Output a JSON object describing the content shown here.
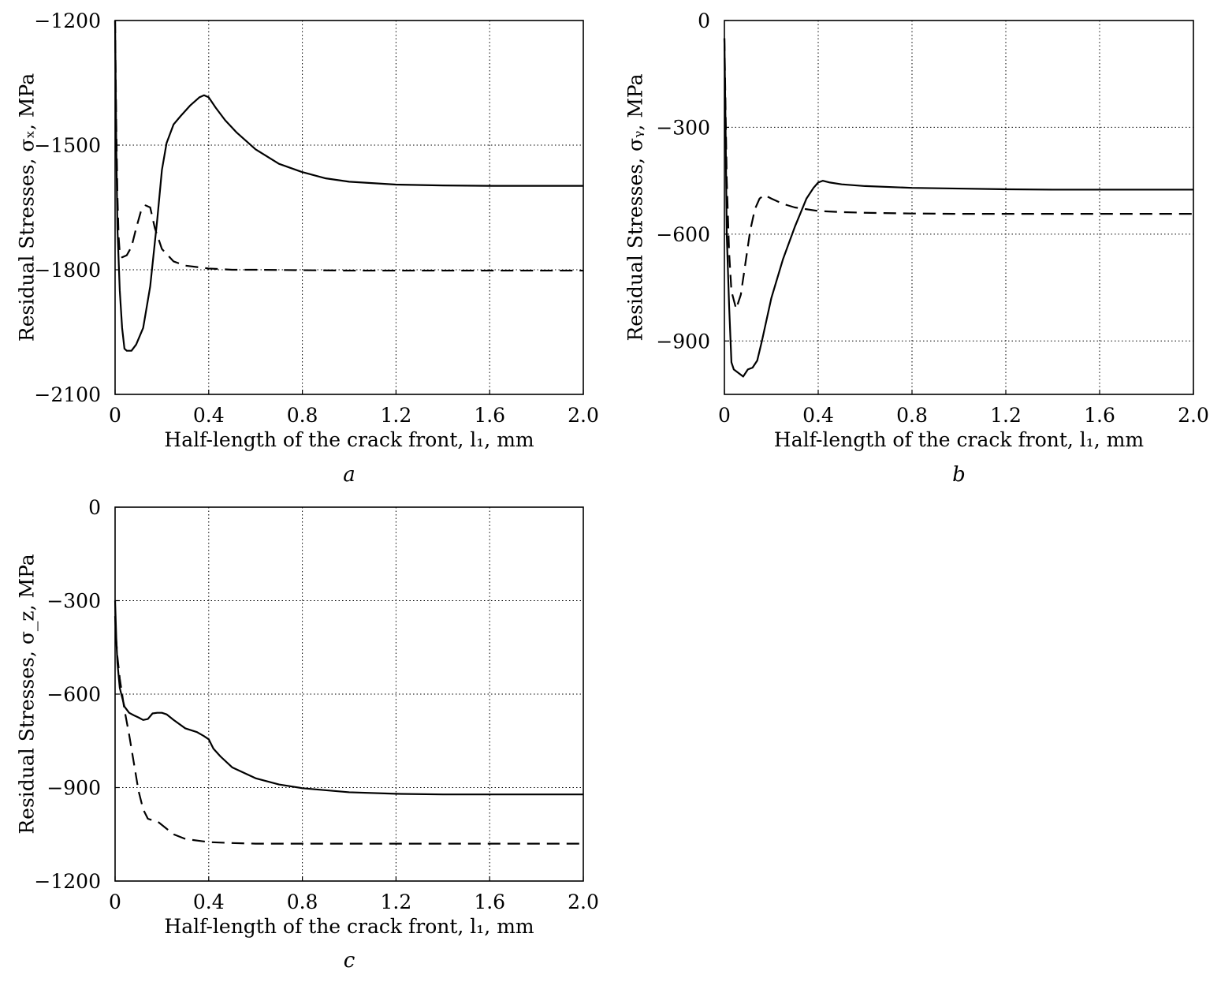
{
  "chart_data": [
    {
      "type": "line",
      "panel_label": "a",
      "xlabel": "Half-length of the crack front, l₁, mm",
      "ylabel": "Residual Stresses, σₓ, MPa",
      "xlim": [
        0,
        2.0
      ],
      "ylim": [
        -2100,
        -1200
      ],
      "x_ticks": [
        0,
        0.4,
        0.8,
        1.2,
        1.6,
        2.0
      ],
      "x_tick_labels": [
        "0",
        "0.4",
        "0.8",
        "1.2",
        "1.6",
        "2.0"
      ],
      "y_ticks": [
        -1200,
        -1500,
        -1800,
        -2100
      ],
      "y_tick_labels": [
        "−1200",
        "−1500",
        "−1800",
        "−2100"
      ],
      "grid": true,
      "series": [
        {
          "style": "solid",
          "x": [
            0,
            0.005,
            0.01,
            0.02,
            0.03,
            0.04,
            0.05,
            0.07,
            0.09,
            0.12,
            0.15,
            0.18,
            0.2,
            0.22,
            0.25,
            0.28,
            0.32,
            0.36,
            0.38,
            0.4,
            0.43,
            0.47,
            0.52,
            0.6,
            0.7,
            0.8,
            0.9,
            1.0,
            1.2,
            1.4,
            1.6,
            1.8,
            2.0
          ],
          "y": [
            -1200,
            -1500,
            -1700,
            -1850,
            -1940,
            -1990,
            -1995,
            -1995,
            -1980,
            -1940,
            -1840,
            -1680,
            -1560,
            -1495,
            -1450,
            -1430,
            -1405,
            -1385,
            -1380,
            -1385,
            -1410,
            -1440,
            -1470,
            -1510,
            -1545,
            -1565,
            -1580,
            -1588,
            -1595,
            -1597,
            -1598,
            -1598,
            -1598
          ]
        },
        {
          "style": "dashed",
          "x": [
            0,
            0.005,
            0.01,
            0.015,
            0.02,
            0.03,
            0.05,
            0.07,
            0.09,
            0.11,
            0.13,
            0.15,
            0.17,
            0.2,
            0.25,
            0.3,
            0.4,
            0.5,
            0.6,
            0.8,
            1.0,
            1.2,
            1.4,
            1.6,
            1.8,
            2.0
          ],
          "y": [
            -1200,
            -1450,
            -1620,
            -1720,
            -1760,
            -1770,
            -1765,
            -1745,
            -1700,
            -1660,
            -1645,
            -1650,
            -1700,
            -1750,
            -1780,
            -1790,
            -1797,
            -1800,
            -1800,
            -1801,
            -1802,
            -1802,
            -1802,
            -1802,
            -1802,
            -1802
          ]
        }
      ]
    },
    {
      "type": "line",
      "panel_label": "b",
      "xlabel": "Half-length of the crack front, l₁, mm",
      "ylabel": "Residual Stresses, σᵧ, MPa",
      "xlim": [
        0,
        2.0
      ],
      "ylim": [
        -1050,
        0
      ],
      "x_ticks": [
        0,
        0.4,
        0.8,
        1.2,
        1.6,
        2.0
      ],
      "x_tick_labels": [
        "0",
        "0.4",
        "0.8",
        "1.2",
        "1.6",
        "2.0"
      ],
      "y_ticks": [
        0,
        -300,
        -600,
        -900
      ],
      "y_tick_labels": [
        "0",
        "−300",
        "−600",
        "−900"
      ],
      "grid": true,
      "series": [
        {
          "style": "solid",
          "x": [
            0,
            0.005,
            0.01,
            0.02,
            0.03,
            0.04,
            0.06,
            0.08,
            0.1,
            0.12,
            0.14,
            0.16,
            0.2,
            0.25,
            0.3,
            0.35,
            0.38,
            0.4,
            0.42,
            0.45,
            0.5,
            0.6,
            0.8,
            1.0,
            1.2,
            1.4,
            1.6,
            1.8,
            2.0
          ],
          "y": [
            -50,
            -300,
            -600,
            -800,
            -960,
            -980,
            -990,
            -1000,
            -980,
            -975,
            -955,
            -900,
            -780,
            -670,
            -580,
            -500,
            -470,
            -455,
            -450,
            -455,
            -460,
            -465,
            -470,
            -472,
            -474,
            -475,
            -475,
            -475,
            -475
          ]
        },
        {
          "style": "dashed",
          "x": [
            0,
            0.005,
            0.01,
            0.02,
            0.03,
            0.05,
            0.07,
            0.09,
            0.11,
            0.13,
            0.15,
            0.17,
            0.2,
            0.25,
            0.3,
            0.35,
            0.4,
            0.5,
            0.6,
            0.8,
            1.0,
            1.2,
            1.4,
            1.6,
            1.8,
            2.0
          ],
          "y": [
            -50,
            -250,
            -450,
            -650,
            -760,
            -810,
            -770,
            -680,
            -590,
            -530,
            -500,
            -490,
            -500,
            -515,
            -525,
            -530,
            -535,
            -538,
            -540,
            -542,
            -543,
            -543,
            -543,
            -543,
            -543,
            -543
          ]
        }
      ]
    },
    {
      "type": "line",
      "panel_label": "c",
      "xlabel": "Half-length of the crack front, l₁, mm",
      "ylabel": "Residual Stresses, σ_z, MPa",
      "xlim": [
        0,
        2.0
      ],
      "ylim": [
        -1200,
        0
      ],
      "x_ticks": [
        0,
        0.4,
        0.8,
        1.2,
        1.6,
        2.0
      ],
      "x_tick_labels": [
        "0",
        "0.4",
        "0.8",
        "1.2",
        "1.6",
        "2.0"
      ],
      "y_ticks": [
        0,
        -300,
        -600,
        -900,
        -1200
      ],
      "y_tick_labels": [
        "0",
        "−300",
        "−600",
        "−900",
        "−1200"
      ],
      "grid": true,
      "series": [
        {
          "style": "solid",
          "x": [
            0,
            0.005,
            0.01,
            0.02,
            0.04,
            0.06,
            0.08,
            0.1,
            0.12,
            0.14,
            0.16,
            0.18,
            0.2,
            0.22,
            0.25,
            0.3,
            0.35,
            0.38,
            0.4,
            0.42,
            0.45,
            0.5,
            0.6,
            0.7,
            0.8,
            1.0,
            1.2,
            1.4,
            1.6,
            1.8,
            2.0
          ],
          "y": [
            -300,
            -420,
            -500,
            -580,
            -640,
            -660,
            -668,
            -675,
            -683,
            -680,
            -662,
            -660,
            -660,
            -665,
            -683,
            -710,
            -722,
            -735,
            -745,
            -775,
            -800,
            -835,
            -870,
            -890,
            -902,
            -915,
            -920,
            -922,
            -922,
            -922,
            -922
          ]
        },
        {
          "style": "dashed",
          "x": [
            0,
            0.005,
            0.01,
            0.02,
            0.04,
            0.06,
            0.08,
            0.1,
            0.12,
            0.14,
            0.16,
            0.18,
            0.2,
            0.25,
            0.3,
            0.4,
            0.5,
            0.6,
            0.8,
            1.0,
            1.2,
            1.4,
            1.6,
            1.8,
            2.0
          ],
          "y": [
            -350,
            -430,
            -480,
            -550,
            -650,
            -730,
            -820,
            -910,
            -970,
            -1000,
            -1005,
            -1008,
            -1020,
            -1050,
            -1065,
            -1075,
            -1078,
            -1080,
            -1080,
            -1080,
            -1080,
            -1080,
            -1080,
            -1080,
            -1080
          ]
        }
      ]
    }
  ]
}
